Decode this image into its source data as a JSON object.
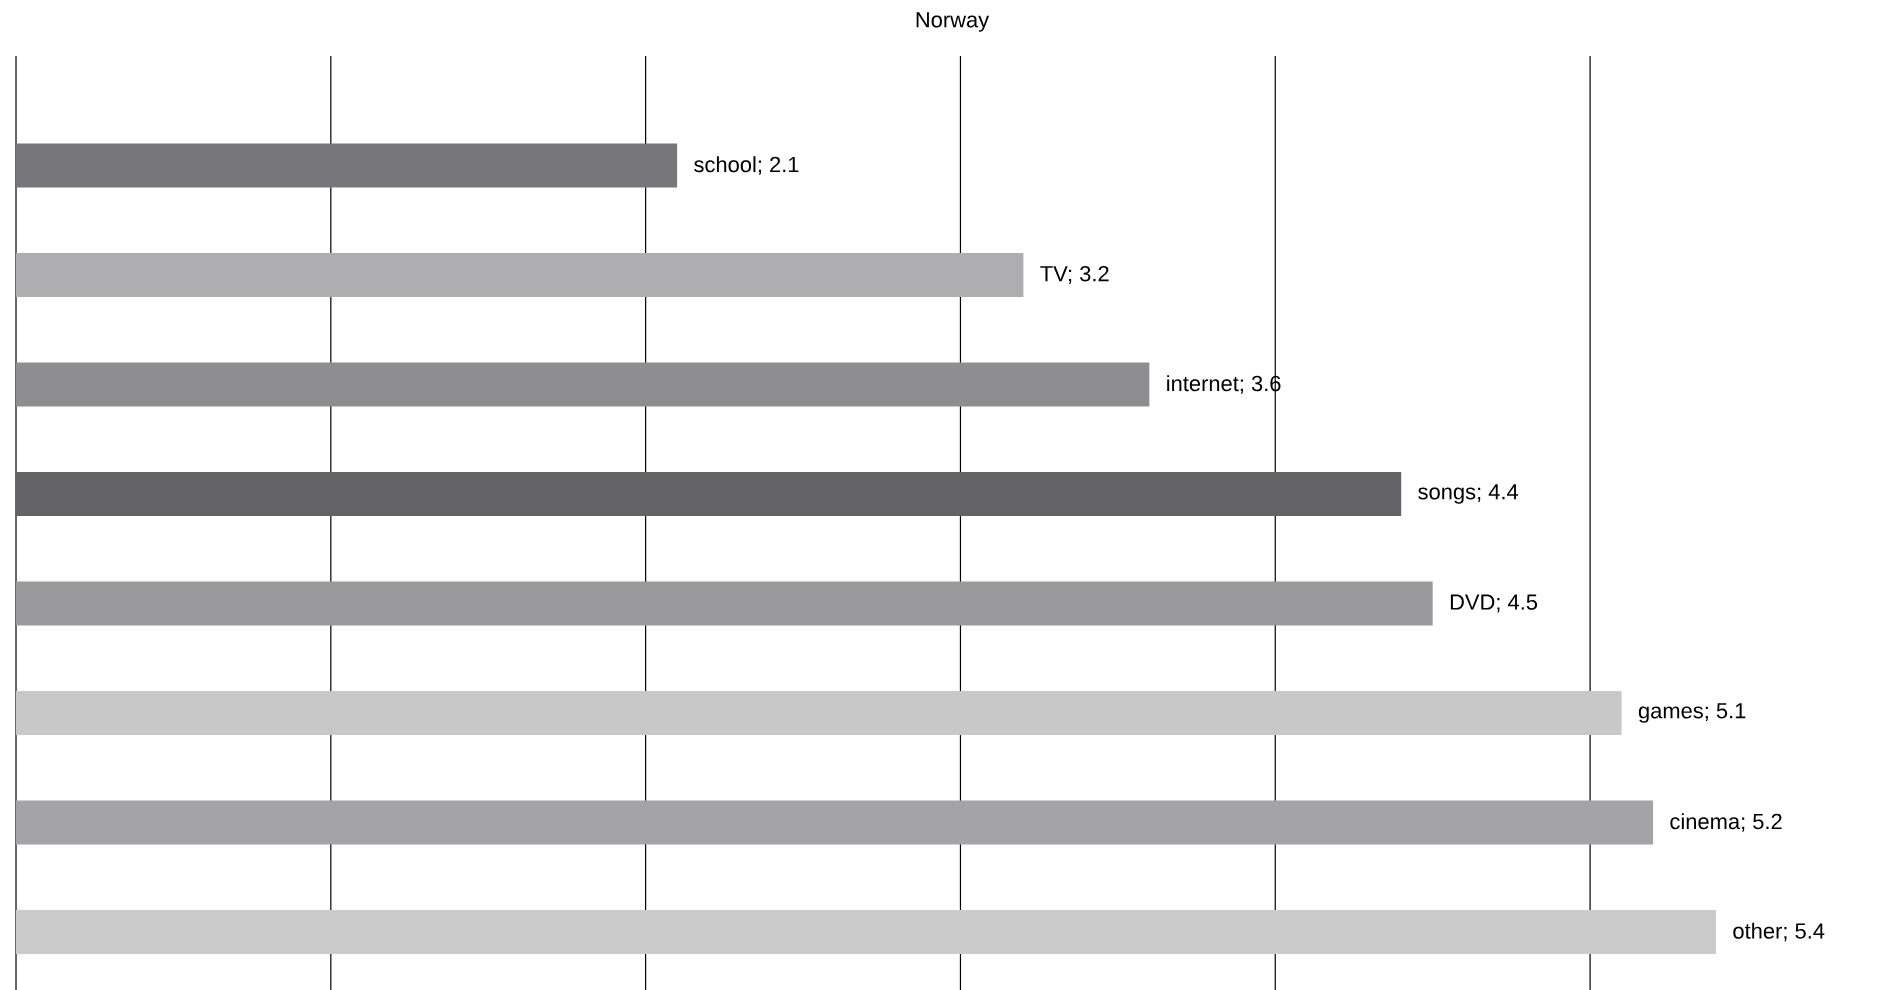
{
  "chart_data": {
    "type": "bar",
    "orientation": "horizontal",
    "title": "Norway",
    "categories": [
      null,
      null,
      null,
      null,
      null,
      null,
      null,
      null
    ],
    "values": [
      2.1,
      3.2,
      3.6,
      4.4,
      4.5,
      5.1,
      5.2,
      5.4
    ],
    "value_labels": [
      "school; 2.1",
      "TV; 3.2",
      "internet; 3.6",
      "songs; 4.4",
      "DVD; 4.5",
      "games; 5.1",
      "cinema; 5.2",
      "other; 5.4"
    ],
    "colors": [
      "#77777a",
      "#aeaeb0",
      "#8e8e90",
      "#636365",
      "#9a9a9c",
      "#c8c8c8",
      "#a4a4a6",
      "#cbcbcb"
    ],
    "xticks": [
      {
        "value": 0,
        "label": null
      },
      {
        "value": 1,
        "label": null
      },
      {
        "value": 2,
        "label": null
      },
      {
        "value": 3,
        "label": null
      },
      {
        "value": 4,
        "label": null
      },
      {
        "value": 5,
        "label": null
      }
    ],
    "grid": "x"
  }
}
